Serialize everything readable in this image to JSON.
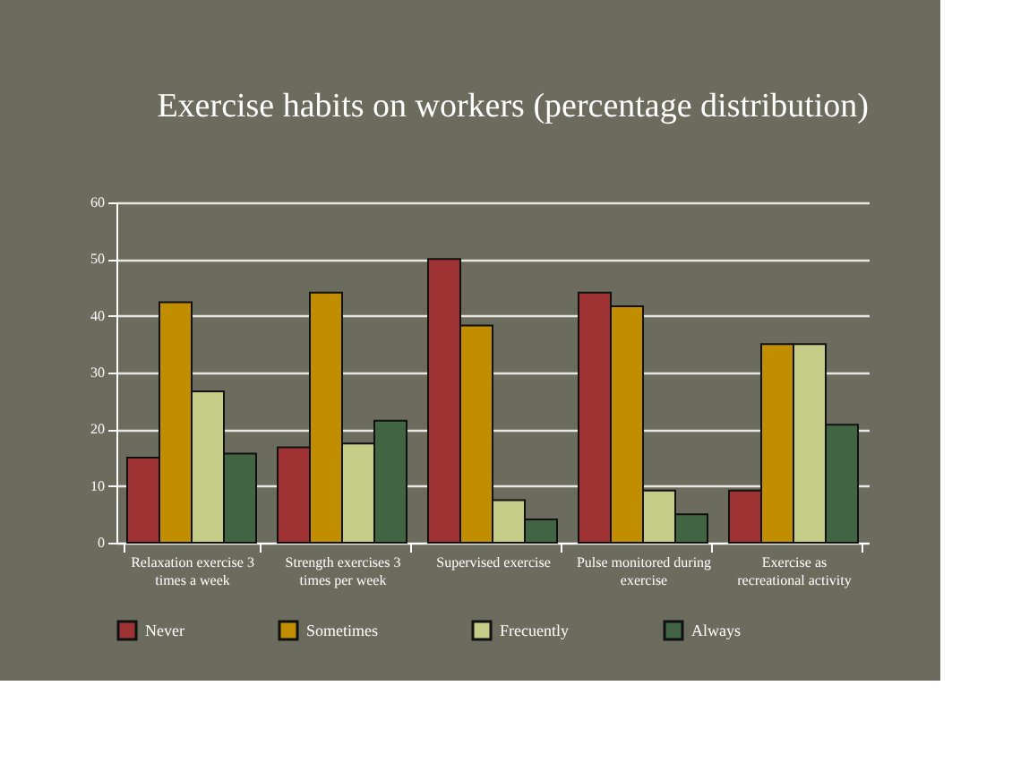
{
  "chart_data": {
    "type": "bar",
    "title": "Exercise habits on workers (percentage distribution)",
    "categories": [
      "Relaxation exercise 3 times a week",
      "Strength exercises 3 times per week",
      "Supervised exercise",
      "Pulse monitored during exercise",
      "Exercise as recreational activity"
    ],
    "series": [
      {
        "name": "Never",
        "color": "#9e3232",
        "values": [
          15,
          16.8,
          50,
          44.1,
          9.2
        ]
      },
      {
        "name": "Sometimes",
        "color": "#c08e00",
        "values": [
          42.4,
          44.1,
          38.3,
          41.7,
          35
        ]
      },
      {
        "name": "Frecuently",
        "color": "#c5cc88",
        "values": [
          26.7,
          17.5,
          7.5,
          9.2,
          35
        ]
      },
      {
        "name": "Always",
        "color": "#416442",
        "values": [
          15.7,
          21.5,
          4.1,
          5,
          20.8
        ]
      }
    ],
    "ylim": [
      0,
      60
    ],
    "yticks": [
      0,
      10,
      20,
      30,
      40,
      50,
      60
    ],
    "grid": "y",
    "legend": "bottom"
  }
}
